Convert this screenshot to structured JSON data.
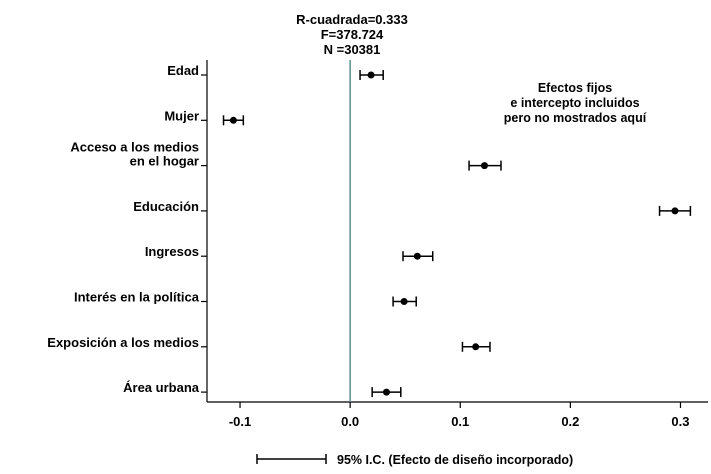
{
  "chart_data": {
    "type": "scatter",
    "stats": [
      "R-cuadrada=0.333",
      "F=378.724",
      "N =30381"
    ],
    "note": [
      "Efectos fijos",
      "e intercepto incluidos",
      "pero no mostrados aquí"
    ],
    "categories": [
      [
        "Edad"
      ],
      [
        "Mujer"
      ],
      [
        "Acceso a los medios",
        "en el hogar"
      ],
      [
        "Educación"
      ],
      [
        "Ingresos"
      ],
      [
        "Interés en la política"
      ],
      [
        "Exposición a los medios"
      ],
      [
        "Área urbana"
      ]
    ],
    "estimates": [
      0.019,
      -0.106,
      0.122,
      0.295,
      0.061,
      0.049,
      0.114,
      0.033
    ],
    "ci_lower": [
      0.009,
      -0.115,
      0.108,
      0.281,
      0.048,
      0.039,
      0.102,
      0.02
    ],
    "ci_upper": [
      0.03,
      -0.097,
      0.137,
      0.309,
      0.075,
      0.06,
      0.127,
      0.046
    ],
    "x_ticks": [
      -0.1,
      0.0,
      0.1,
      0.2,
      0.3
    ],
    "x_tick_labels": [
      "-0.1",
      "0.0",
      "0.1",
      "0.2",
      "0.3"
    ],
    "xlim": [
      -0.13,
      0.325
    ],
    "reference_line": 0,
    "reference_line_color": "#5b8f8f",
    "legend_label": "95% I.C. (Efecto de diseño incorporado)",
    "grid": false
  }
}
